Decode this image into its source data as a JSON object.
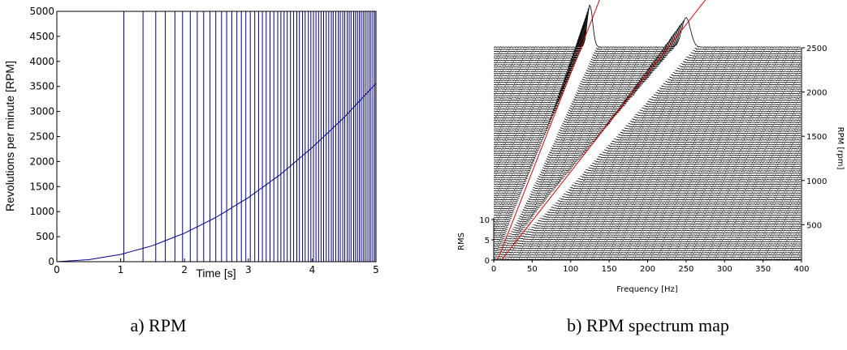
{
  "chart_data": [
    {
      "type": "line",
      "caption": "a) RPM",
      "xlabel": "Time [s]",
      "ylabel": "Revolutions per minute [RPM]",
      "xlim": [
        0,
        5
      ],
      "ylim": [
        0,
        5000
      ],
      "xticks": [
        "0",
        "1",
        "2",
        "3",
        "4",
        "5"
      ],
      "yticks": [
        "0",
        "500",
        "1000",
        "1500",
        "2000",
        "2500",
        "3000",
        "3500",
        "4000",
        "4500",
        "5000"
      ],
      "line_color": "#00008b",
      "series": [
        {
          "x": [
            0,
            0.5,
            1,
            1.5,
            2,
            2.5,
            3,
            3.5,
            4,
            4.5,
            5
          ],
          "y": [
            0,
            40,
            145,
            320,
            570,
            890,
            1280,
            1740,
            2280,
            2880,
            3560
          ]
        }
      ],
      "pulse_times": [
        1.05,
        1.35,
        1.55,
        1.7,
        1.85,
        1.97,
        2.09,
        2.2,
        2.3,
        2.4,
        2.49,
        2.58,
        2.66,
        2.74,
        2.82,
        2.89,
        2.96,
        3.03,
        3.1,
        3.16,
        3.22,
        3.28,
        3.34,
        3.4,
        3.46,
        3.51,
        3.56,
        3.61,
        3.66,
        3.71,
        3.76,
        3.8,
        3.85,
        3.89,
        3.94,
        3.98,
        4.02,
        4.06,
        4.1,
        4.14,
        4.18,
        4.22,
        4.26,
        4.3,
        4.33,
        4.37,
        4.41,
        4.44,
        4.48,
        4.51,
        4.55,
        4.58,
        4.61,
        4.65,
        4.68,
        4.71,
        4.74,
        4.77,
        4.8,
        4.83,
        4.86,
        4.89,
        4.92,
        4.95,
        4.98,
        5.0
      ]
    },
    {
      "type": "waterfall",
      "caption": "b) RPM spectrum map",
      "xlabel": "Frequency [Hz]",
      "ylabel_left": "RMS",
      "ylabel_right": "RPM [rpm]",
      "xlim": [
        0,
        400
      ],
      "rms_lim": [
        0,
        10
      ],
      "rpm_lim": [
        100,
        2500
      ],
      "xticks": [
        "0",
        "50",
        "100",
        "150",
        "200",
        "250",
        "300",
        "350",
        "400"
      ],
      "rms_ticks": [
        "0",
        "5",
        "10"
      ],
      "rpm_ticks": [
        "500",
        "1000",
        "1500",
        "2000",
        "2500"
      ],
      "trace_rpm_step": 25,
      "orders": [
        {
          "order": 3,
          "peak_rpm": 2500,
          "peak_rms": 10,
          "width_hz": 5
        },
        {
          "order": 6,
          "peak_rpm": 2500,
          "peak_rms": 7,
          "width_hz": 8
        }
      ],
      "order_line_color": "#e00000"
    }
  ]
}
